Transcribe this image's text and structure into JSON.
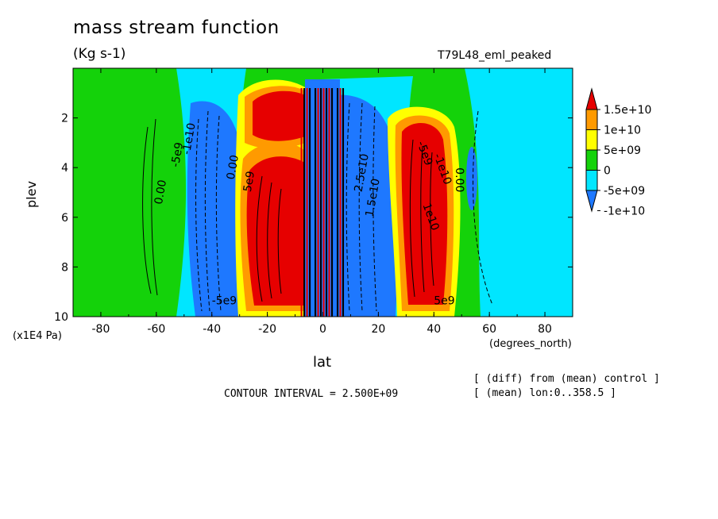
{
  "header": {
    "title": "mass stream function",
    "units": "(Kg s-1)",
    "run_label": "T79L48_eml_peaked"
  },
  "footer": {
    "contour_interval": "CONTOUR INTERVAL = 2.500E+09",
    "note_line1": "[ (diff) from (mean) control ]",
    "note_line2": "[ (mean) lon:0..358.5 ]"
  },
  "chart_data": {
    "type": "heatmap",
    "title": "mass stream function",
    "subtitle": "(Kg s-1)",
    "xlabel": "lat",
    "x_units": "(degrees_north)",
    "ylabel": "plev",
    "y_units": "(x1E4 Pa)",
    "xlim": [
      -90,
      90
    ],
    "ylim": [
      10,
      0
    ],
    "x_ticks": [
      "-80",
      "-60",
      "-40",
      "-20",
      "0",
      "20",
      "40",
      "60",
      "80"
    ],
    "y_ticks": [
      "2",
      "4",
      "6",
      "8",
      "10"
    ],
    "colorbar": {
      "labels": [
        "1.5e+10",
        "1e+10",
        "5e+09",
        "0",
        "-5e+09",
        "-1e+10"
      ],
      "levels": [
        -15000000000.0,
        -10000000000.0,
        -5000000000.0,
        0,
        5000000000.0,
        10000000000.0,
        15000000000.0
      ],
      "colors": [
        "#1e78ff",
        "#00e6ff",
        "#14d20a",
        "#ffff00",
        "#ff9a00",
        "#e60000"
      ]
    },
    "contour_labels": [
      "0.00",
      "-5e9",
      "-1e10",
      "0.00",
      "5e9",
      "-5e9",
      "-1e10",
      "1e10",
      "1.5e10",
      "2.5e10",
      "0.00",
      "-5e9",
      "5e9"
    ],
    "regions": [
      {
        "name": "sh-positive-cell",
        "lat": [
          -28,
          -8
        ],
        "plev": [
          3.5,
          9.8
        ],
        "value": 20000000000.0
      },
      {
        "name": "sh-upper-positive",
        "lat": [
          -18,
          -4
        ],
        "plev": [
          1.2,
          3.2
        ],
        "value": 15000000000.0
      },
      {
        "name": "sh-negative-cell",
        "lat": [
          -48,
          -28
        ],
        "plev": [
          1.8,
          9.8
        ],
        "value": -12000000000.0
      },
      {
        "name": "nh-positive-cell",
        "lat": [
          30,
          46
        ],
        "plev": [
          1.8,
          9.6
        ],
        "value": 20000000000.0
      },
      {
        "name": "nh-negative-cell",
        "lat": [
          6,
          30
        ],
        "plev": [
          1.2,
          9.8
        ],
        "value": -12000000000.0
      },
      {
        "name": "nh-outer-negative",
        "lat": [
          50,
          56
        ],
        "plev": [
          3.0,
          6.0
        ],
        "value": -7500000000.0
      },
      {
        "name": "equatorial-oscillation",
        "lat": [
          -8,
          8
        ],
        "plev": [
          0.8,
          10
        ],
        "value": 0
      }
    ]
  }
}
